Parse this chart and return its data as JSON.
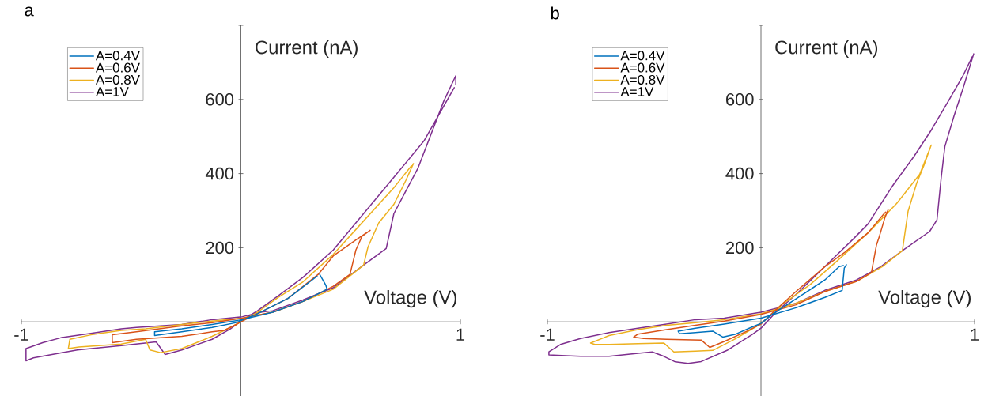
{
  "chart_data": [
    {
      "type": "line",
      "title": "a",
      "xlabel": "Voltage (V)",
      "ylabel": "Current (nA)",
      "xlim": [
        -1,
        1
      ],
      "ylim": [
        -200,
        800
      ],
      "xticks": [
        -1,
        1
      ],
      "yticks": [
        200,
        400,
        600,
        {
          "value": 800,
          "label": null
        }
      ],
      "legend": "top left",
      "series": [
        {
          "name": "A=0.4V",
          "color": "#0072bd",
          "x": [
            0.359,
            0.386,
            0.393,
            0.283,
            0.145,
            0.007,
            -0.131,
            -0.269,
            -0.393,
            -0.393,
            -0.269,
            -0.131,
            -0.021,
            0.076,
            0.214,
            0.347
          ],
          "values": [
            128,
            100,
            88,
            55,
            26,
            6,
            -7,
            -19,
            -27,
            -37,
            -27,
            -15,
            -2,
            22,
            63,
            123
          ]
        },
        {
          "name": "A=0.6V",
          "color": "#d95319",
          "x": [
            0.589,
            0.552,
            0.524,
            0.497,
            0.421,
            0.283,
            0.145,
            0.007,
            -0.131,
            -0.269,
            -0.476,
            -0.586,
            -0.586,
            -0.476,
            -0.269,
            -0.131,
            -0.076,
            -0.021,
            0,
            0.076,
            0.214,
            0.352,
            0.421,
            0.517,
            0.577
          ],
          "values": [
            247,
            231,
            194,
            128,
            96,
            55,
            26,
            10,
            -2,
            -11,
            -27,
            -35,
            -56,
            -47,
            -39,
            -27,
            -23,
            -7,
            0,
            22,
            63,
            128,
            178,
            218,
            242
          ]
        },
        {
          "name": "A=0.8V",
          "color": "#edb120",
          "x": [
            0.786,
            0.752,
            0.697,
            0.628,
            0.579,
            0.559,
            0.421,
            0.283,
            0.145,
            0.007,
            -0.131,
            -0.269,
            -0.434,
            -0.545,
            -0.683,
            -0.779,
            -0.786,
            -0.738,
            -0.545,
            -0.434,
            -0.414,
            -0.366,
            -0.269,
            -0.131,
            -0.048,
            0,
            0.076,
            0.172,
            0.283,
            0.421,
            0.559,
            0.697,
            0.777
          ],
          "values": [
            427,
            382,
            317,
            267,
            202,
            153,
            88,
            55,
            26,
            10,
            2,
            -7,
            -19,
            -23,
            -35,
            -47,
            -72,
            -68,
            -60,
            -47,
            -76,
            -83,
            -72,
            -39,
            -15,
            0,
            26,
            67,
            108,
            182,
            272,
            362,
            421
          ]
        },
        {
          "name": "A=1V",
          "color": "#7e2f8e",
          "x": [
            0.979,
            0.979,
            0.924,
            0.807,
            0.697,
            0.662,
            0.559,
            0.421,
            0.283,
            0.145,
            0.09,
            0.007,
            -0.131,
            -0.269,
            -0.476,
            -0.545,
            -0.683,
            -0.821,
            -0.903,
            -0.979,
            -0.979,
            -0.945,
            -0.821,
            -0.745,
            -0.545,
            -0.386,
            -0.345,
            -0.269,
            -0.131,
            -0.048,
            0,
            0.076,
            0.172,
            0.283,
            0.421,
            0.559,
            0.697,
            0.834,
            0.972
          ],
          "values": [
            640,
            664,
            595,
            415,
            292,
            198,
            153,
            92,
            59,
            30,
            26,
            14,
            6,
            -7,
            -15,
            -19,
            -31,
            -43,
            -56,
            -72,
            -105,
            -97,
            -84,
            -76,
            -64,
            -54,
            -88,
            -76,
            -47,
            -19,
            2,
            30,
            71,
            120,
            194,
            292,
            390,
            488,
            632
          ]
        }
      ]
    },
    {
      "type": "line",
      "title": "b",
      "xlabel": "Voltage (V)",
      "ylabel": "Current (nA)",
      "xlim": [
        -1,
        1
      ],
      "ylim": [
        -200,
        800
      ],
      "xticks": [
        -1,
        1
      ],
      "yticks": [
        200,
        400,
        600,
        {
          "value": 800,
          "label": null
        }
      ],
      "legend": "top left",
      "series": [
        {
          "name": "A=0.4V",
          "color": "#0072bd",
          "x": [
            0.4,
            0.39,
            0.382,
            0.38,
            0.299,
            0.164,
            0,
            -0.172,
            -0.307,
            -0.388,
            -0.381,
            -0.307,
            -0.226,
            -0.179,
            -0.118,
            -0.038,
            0,
            0.057,
            0.164,
            0.299,
            0.366,
            0.386
          ],
          "values": [
            154,
            145,
            97,
            85,
            66,
            38,
            10,
            -6,
            -17,
            -25,
            -32,
            -29,
            -25,
            -41,
            -33,
            -13,
            -4,
            22,
            62,
            113,
            149,
            152
          ]
        },
        {
          "name": "A=0.6V",
          "color": "#d95319",
          "x": [
            0.595,
            0.579,
            0.555,
            0.541,
            0.517,
            0.447,
            0.299,
            0.164,
            0,
            -0.172,
            -0.307,
            -0.442,
            -0.576,
            -0.596,
            -0.549,
            -0.442,
            -0.28,
            -0.24,
            -0.172,
            -0.065,
            0,
            0.057,
            0.164,
            0.299,
            0.393,
            0.501,
            0.575,
            0.584
          ],
          "values": [
            302,
            279,
            232,
            208,
            133,
            109,
            82,
            46,
            20,
            2,
            -9,
            -21,
            -33,
            -41,
            -45,
            -47,
            -49,
            -69,
            -53,
            -25,
            -6,
            26,
            82,
            149,
            188,
            240,
            291,
            296
          ]
        },
        {
          "name": "A=0.8V",
          "color": "#edb120",
          "x": [
            0.797,
            0.763,
            0.729,
            0.689,
            0.662,
            0.568,
            0.447,
            0.299,
            0.164,
            0,
            -0.172,
            -0.307,
            -0.442,
            -0.576,
            -0.711,
            -0.798,
            -0.778,
            -0.711,
            -0.576,
            -0.455,
            -0.408,
            -0.307,
            -0.226,
            -0.118,
            -0.024,
            0.03,
            0.097,
            0.231,
            0.366,
            0.501,
            0.635,
            0.743,
            0.792
          ],
          "values": [
            477,
            422,
            374,
            299,
            192,
            149,
            109,
            82,
            50,
            22,
            6,
            -2,
            -9,
            -21,
            -37,
            -57,
            -61,
            -61,
            -59,
            -57,
            -81,
            -79,
            -77,
            -45,
            -13,
            10,
            46,
            101,
            169,
            240,
            319,
            398,
            469
          ]
        },
        {
          "name": "A=1V",
          "color": "#7e2f8e",
          "x": [
            0.996,
            0.945,
            0.904,
            0.861,
            0.844,
            0.824,
            0.79,
            0.662,
            0.561,
            0.447,
            0.299,
            0.164,
            0,
            -0.172,
            -0.307,
            -0.442,
            -0.576,
            -0.711,
            -0.845,
            -0.939,
            -0.993,
            -0.993,
            -0.913,
            -0.845,
            -0.711,
            -0.576,
            -0.509,
            -0.455,
            -0.401,
            -0.341,
            -0.28,
            -0.159,
            -0.038,
            0,
            0.07,
            0.164,
            0.299,
            0.433,
            0.501,
            0.615,
            0.716,
            0.797,
            0.878,
            0.945,
            0.989
          ],
          "values": [
            723,
            628,
            556,
            473,
            390,
            275,
            244,
            192,
            149,
            113,
            85,
            50,
            26,
            10,
            6,
            -6,
            -17,
            -29,
            -45,
            -61,
            -81,
            -89,
            -91,
            -93,
            -93,
            -85,
            -81,
            -93,
            -108,
            -112,
            -107,
            -77,
            -33,
            -17,
            26,
            74,
            149,
            224,
            264,
            366,
            446,
            517,
            596,
            663,
            715
          ]
        }
      ]
    }
  ]
}
